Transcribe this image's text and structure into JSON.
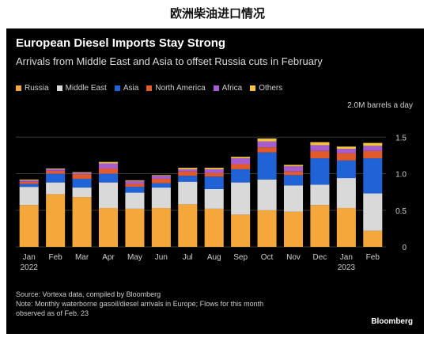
{
  "page_title": "欧洲柴油进口情况",
  "chart_data": {
    "type": "bar",
    "stacked": true,
    "title": "European Diesel Imports Stay Strong",
    "subtitle": "Arrivals from Middle East and Asia to offset Russia cuts in February",
    "unit_label": "2.0M barrels a day",
    "ylim": [
      0,
      1.6
    ],
    "yticks": [
      0,
      0.5,
      1.0,
      1.5
    ],
    "ytick_labels": [
      "0",
      "0.5",
      "1.0",
      "1.5"
    ],
    "legend_position": "top-left",
    "categories": [
      "Jan",
      "Feb",
      "Mar",
      "Apr",
      "May",
      "Jun",
      "Jul",
      "Aug",
      "Sep",
      "Oct",
      "Nov",
      "Dec",
      "Jan",
      "Feb"
    ],
    "category_sublabels": [
      "2022",
      "",
      "",
      "",
      "",
      "",
      "",
      "",
      "",
      "",
      "",
      "",
      "2023",
      ""
    ],
    "series": [
      {
        "name": "Russia",
        "color": "#f4a73b",
        "values": [
          0.57,
          0.72,
          0.68,
          0.53,
          0.52,
          0.53,
          0.58,
          0.52,
          0.44,
          0.5,
          0.48,
          0.57,
          0.53,
          0.22
        ]
      },
      {
        "name": "Middle East",
        "color": "#d9d9d9",
        "values": [
          0.25,
          0.16,
          0.13,
          0.35,
          0.22,
          0.28,
          0.31,
          0.27,
          0.44,
          0.42,
          0.36,
          0.28,
          0.41,
          0.51
        ]
      },
      {
        "name": "Asia",
        "color": "#1f63d6",
        "values": [
          0.04,
          0.12,
          0.12,
          0.12,
          0.08,
          0.06,
          0.08,
          0.17,
          0.18,
          0.37,
          0.14,
          0.36,
          0.24,
          0.48
        ]
      },
      {
        "name": "North America",
        "color": "#e05a2a",
        "values": [
          0.03,
          0.04,
          0.06,
          0.07,
          0.04,
          0.06,
          0.06,
          0.05,
          0.07,
          0.07,
          0.05,
          0.1,
          0.1,
          0.1
        ]
      },
      {
        "name": "Africa",
        "color": "#a55dd1",
        "values": [
          0.02,
          0.02,
          0.02,
          0.07,
          0.04,
          0.04,
          0.03,
          0.05,
          0.08,
          0.08,
          0.07,
          0.08,
          0.06,
          0.07
        ]
      },
      {
        "name": "Others",
        "color": "#f2c53d",
        "values": [
          0.01,
          0.01,
          0.01,
          0.02,
          0.01,
          0.01,
          0.02,
          0.02,
          0.02,
          0.04,
          0.02,
          0.04,
          0.03,
          0.04
        ]
      }
    ],
    "source": "Source: Vortexa data, compiled by Bloomberg",
    "note": "Note: Monthly waterborne gasoil/diesel arrivals in Europe; Flows for this month",
    "note2": "observed as of Feb. 23",
    "brand": "Bloomberg"
  }
}
